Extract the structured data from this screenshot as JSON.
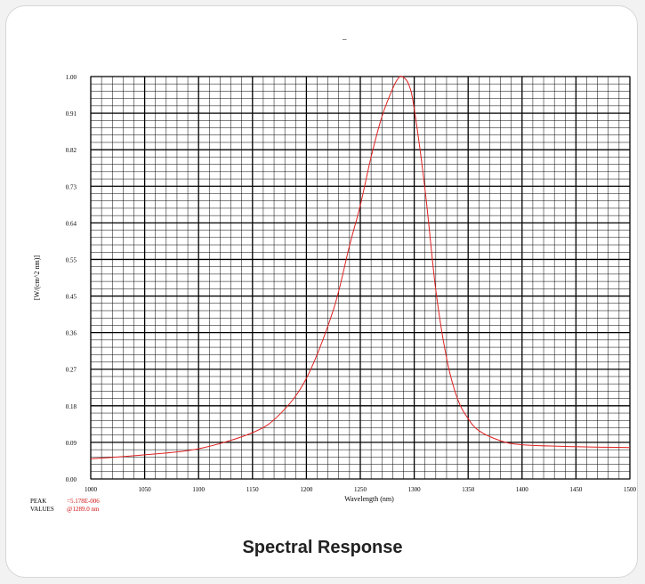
{
  "caption": "Spectral Response",
  "chart_data": {
    "type": "line",
    "title": "",
    "xlabel": "Wavelength (nm)",
    "ylabel": "[W/(cm^2 nm)]",
    "xlim": [
      1000,
      1500
    ],
    "ylim": [
      0.0,
      1.0
    ],
    "x_ticks": [
      "1000",
      "1050",
      "1100",
      "1150",
      "1200",
      "1250",
      "1300",
      "1350",
      "1400",
      "1450",
      "1500"
    ],
    "y_ticks": [
      "0.00",
      "0.09",
      "0.18",
      "0.27",
      "0.36",
      "0.45",
      "0.55",
      "0.64",
      "0.73",
      "0.82",
      "0.91",
      "1.00"
    ],
    "grid": true,
    "series": [
      {
        "name": "",
        "color": "#e02020",
        "x": [
          1000,
          1050,
          1100,
          1150,
          1175,
          1200,
          1225,
          1240,
          1250,
          1260,
          1270,
          1280,
          1285,
          1289,
          1295,
          1300,
          1310,
          1320,
          1330,
          1340,
          1350,
          1360,
          1380,
          1400,
          1450,
          1500
        ],
        "y": [
          0.05,
          0.06,
          0.075,
          0.115,
          0.16,
          0.25,
          0.42,
          0.58,
          0.68,
          0.8,
          0.9,
          0.97,
          0.995,
          1.0,
          0.98,
          0.92,
          0.72,
          0.47,
          0.3,
          0.2,
          0.15,
          0.12,
          0.095,
          0.085,
          0.08,
          0.078
        ]
      }
    ],
    "legend": {
      "label": "–",
      "color": "#e02020",
      "position": "top-center"
    },
    "peak_label": "PEAK",
    "values_label": "VALUES",
    "peak_value": "=5.178E-006",
    "peak_wavelength": "@1289.0 nm"
  }
}
